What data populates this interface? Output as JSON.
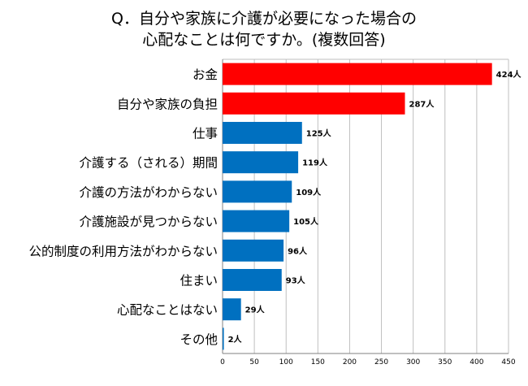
{
  "title_lines": [
    "Q．自分や家族に介護が必要になった場合の",
    "心配なことは何ですか。(複数回答)"
  ],
  "chart_data": {
    "type": "bar",
    "orientation": "horizontal",
    "title": "Q．自分や家族に介護が必要になった場合の 心配なことは何ですか。(複数回答)",
    "categories": [
      "お金",
      "自分や家族の負担",
      "仕事",
      "介護する（される）期間",
      "介護の方法がわからない",
      "介護施設が見つからない",
      "公的制度の利用方法がわからない",
      "住まい",
      "心配なことはない",
      "その他"
    ],
    "values": [
      424,
      287,
      125,
      119,
      109,
      105,
      96,
      93,
      29,
      2
    ],
    "value_labels": [
      "424人",
      "287人",
      "125人",
      "119人",
      "109人",
      "105人",
      "96人",
      "93人",
      "29人",
      "2人"
    ],
    "bar_colors": [
      "#ff0000",
      "#ff0000",
      "#0070c0",
      "#0070c0",
      "#0070c0",
      "#0070c0",
      "#0070c0",
      "#0070c0",
      "#0070c0",
      "#0070c0"
    ],
    "xlim": [
      0,
      450
    ],
    "xticks": [
      0,
      50,
      100,
      150,
      200,
      250,
      300,
      350,
      400,
      450
    ],
    "grid": true,
    "legend": "none"
  }
}
